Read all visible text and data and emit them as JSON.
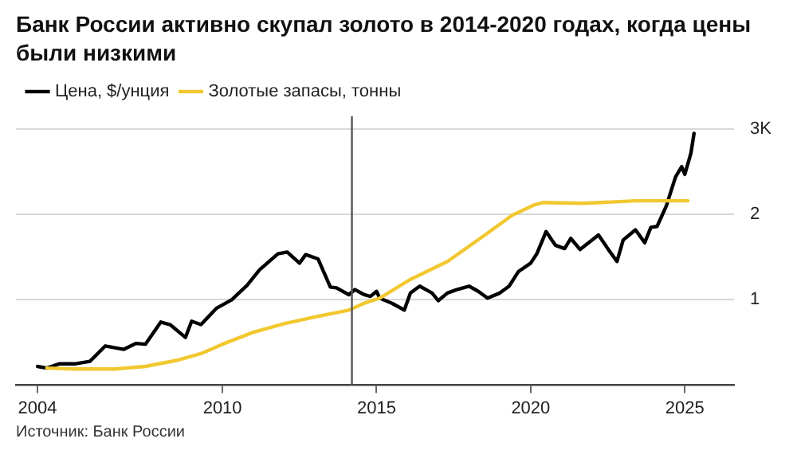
{
  "chart_data": {
    "type": "line",
    "title": "Банк России активно скупал золото в 2014-2020 годах, когда цены были низкими",
    "series": [
      {
        "name": "Цена, $/унция",
        "color": "#000000",
        "x": [
          2004.0,
          2004.3,
          2004.7,
          2005.2,
          2005.7,
          2006.2,
          2006.8,
          2007.2,
          2007.5,
          2008.0,
          2008.3,
          2008.8,
          2009.0,
          2009.3,
          2009.8,
          2010.3,
          2010.8,
          2011.2,
          2011.8,
          2012.1,
          2012.5,
          2012.7,
          2013.1,
          2013.5,
          2013.7,
          2014.1,
          2014.3,
          2014.6,
          2014.8,
          2015.0,
          2015.1,
          2015.5,
          2015.9,
          2016.1,
          2016.4,
          2016.8,
          2017.0,
          2017.3,
          2017.6,
          2018.0,
          2018.3,
          2018.6,
          2019.0,
          2019.3,
          2019.6,
          2020.0,
          2020.2,
          2020.5,
          2020.8,
          2021.1,
          2021.3,
          2021.6,
          2022.2,
          2022.5,
          2022.8,
          2023.0,
          2023.4,
          2023.7,
          2023.9,
          2024.1,
          2024.4,
          2024.7,
          2024.9,
          2025.0,
          2025.2,
          2025.3
        ],
        "values": [
          0.22,
          0.2,
          0.25,
          0.25,
          0.28,
          0.46,
          0.42,
          0.49,
          0.48,
          0.74,
          0.71,
          0.56,
          0.75,
          0.71,
          0.9,
          1.0,
          1.17,
          1.35,
          1.54,
          1.56,
          1.43,
          1.53,
          1.48,
          1.15,
          1.14,
          1.06,
          1.12,
          1.06,
          1.04,
          1.1,
          1.02,
          0.96,
          0.88,
          1.08,
          1.16,
          1.08,
          0.99,
          1.08,
          1.12,
          1.16,
          1.1,
          1.02,
          1.08,
          1.16,
          1.33,
          1.43,
          1.54,
          1.8,
          1.64,
          1.6,
          1.72,
          1.59,
          1.76,
          1.6,
          1.45,
          1.7,
          1.82,
          1.67,
          1.85,
          1.86,
          2.1,
          2.44,
          2.56,
          2.47,
          2.72,
          2.95
        ]
      },
      {
        "name": "Золотые запасы, тонны",
        "color": "#f2c830",
        "x": [
          2004.3,
          2005.2,
          2006.5,
          2007.5,
          2008.5,
          2009.3,
          2010.0,
          2011.0,
          2012.0,
          2013.0,
          2014.1,
          2014.6,
          2015.1,
          2016.1,
          2017.3,
          2018.4,
          2019.4,
          2020.1,
          2020.4,
          2021.7,
          2023.4,
          2025.1
        ],
        "values": [
          0.2,
          0.19,
          0.19,
          0.22,
          0.29,
          0.37,
          0.48,
          0.62,
          0.72,
          0.8,
          0.88,
          0.96,
          1.02,
          1.24,
          1.45,
          1.73,
          1.99,
          2.11,
          2.14,
          2.13,
          2.16,
          2.16
        ]
      }
    ],
    "xlim": [
      2003.3,
      2026.6
    ],
    "xticks": [
      2004,
      2010,
      2015,
      2020,
      2025
    ],
    "ylim": [
      0,
      3.15
    ],
    "yticks": [
      1,
      2,
      {
        "value": 3,
        "label": "3K"
      }
    ],
    "ref_lines": [
      {
        "axis": "x",
        "value": 2014.2,
        "color": "#555555"
      }
    ],
    "grid": "y",
    "legend": "top left",
    "marker": "none",
    "line_style": "solid",
    "annotations": [
      "Источник: Банк России"
    ]
  }
}
